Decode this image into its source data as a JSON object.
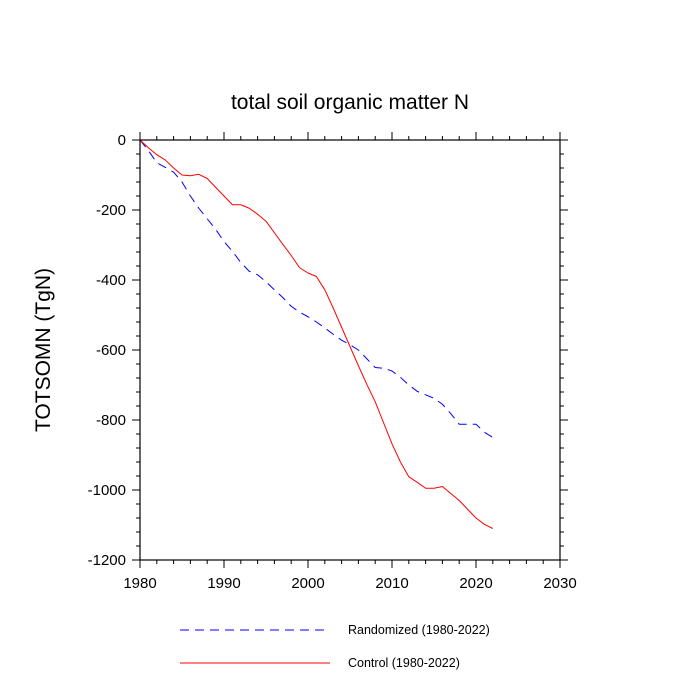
{
  "chart_data": {
    "type": "line",
    "title": "total soil organic matter N",
    "xlabel": "",
    "ylabel": "TOTSOMN  (TgN)",
    "xlim": [
      1980,
      2030
    ],
    "ylim": [
      -1200,
      0
    ],
    "x_ticks": [
      1980,
      1990,
      2000,
      2010,
      2020,
      2030
    ],
    "y_ticks": [
      0,
      -200,
      -400,
      -600,
      -800,
      -1000,
      -1200
    ],
    "x": [
      1980,
      1981,
      1982,
      1983,
      1984,
      1985,
      1986,
      1987,
      1988,
      1989,
      1990,
      1991,
      1992,
      1993,
      1994,
      1995,
      1996,
      1997,
      1998,
      1999,
      2000,
      2001,
      2002,
      2003,
      2004,
      2005,
      2006,
      2007,
      2008,
      2009,
      2010,
      2011,
      2012,
      2013,
      2014,
      2015,
      2016,
      2017,
      2018,
      2019,
      2020,
      2021,
      2022
    ],
    "series": [
      {
        "name": "Randomized (1980-2022)",
        "color": "#0000ff",
        "dash": "dashed",
        "values": [
          0,
          -30,
          -65,
          -78,
          -92,
          -120,
          -160,
          -195,
          -225,
          -255,
          -290,
          -318,
          -350,
          -375,
          -385,
          -405,
          -428,
          -450,
          -475,
          -492,
          -505,
          -520,
          -537,
          -555,
          -572,
          -585,
          -600,
          -625,
          -650,
          -652,
          -660,
          -678,
          -700,
          -718,
          -728,
          -738,
          -755,
          -782,
          -812,
          -812,
          -812,
          -835,
          -850
        ]
      },
      {
        "name": "Control (1980-2022)",
        "color": "#ff0000",
        "dash": "solid",
        "values": [
          0,
          -22,
          -42,
          -57,
          -80,
          -100,
          -102,
          -98,
          -110,
          -135,
          -160,
          -185,
          -185,
          -195,
          -212,
          -232,
          -265,
          -298,
          -330,
          -365,
          -380,
          -390,
          -428,
          -480,
          -535,
          -590,
          -645,
          -698,
          -748,
          -808,
          -868,
          -920,
          -962,
          -978,
          -995,
          -995,
          -990,
          -1010,
          -1030,
          -1055,
          -1080,
          -1098,
          -1110
        ]
      }
    ],
    "legend": [
      {
        "label": "Randomized (1980-2022)",
        "series": 0
      },
      {
        "label": "Control (1980-2022)",
        "series": 1
      }
    ],
    "legend_position": "bottom",
    "grid": false
  }
}
